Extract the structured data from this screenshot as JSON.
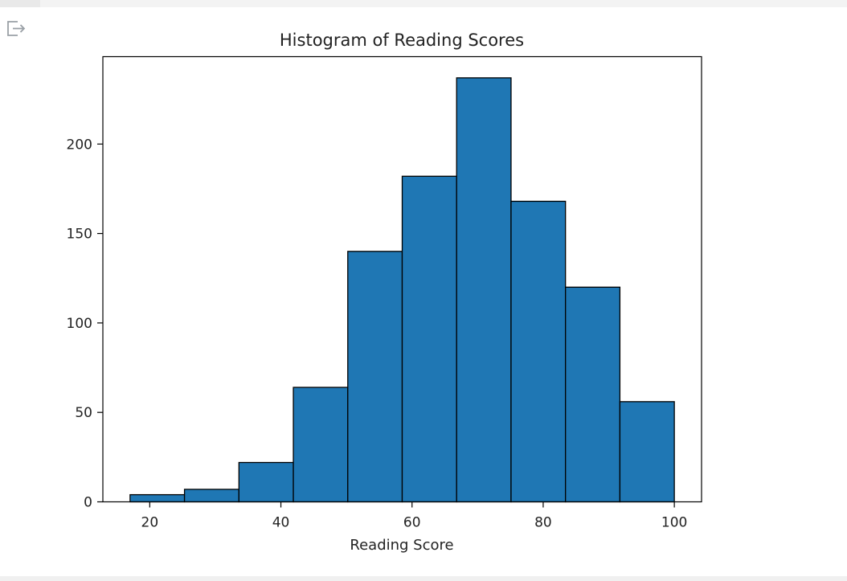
{
  "output": {
    "icon": "output-redirect-icon"
  },
  "colors": {
    "bar_fill": "#1f77b4",
    "bar_edge": "#000000",
    "text": "#222222",
    "icon": "#9aa0a6"
  },
  "chart_data": {
    "type": "bar",
    "histogram": true,
    "title": "Histogram of Reading Scores",
    "xlabel": "Reading Score",
    "ylabel": "",
    "bin_edges": [
      17,
      25.3,
      33.6,
      41.9,
      50.2,
      58.5,
      66.8,
      75.1,
      83.4,
      91.7,
      100
    ],
    "values": [
      4,
      7,
      22,
      64,
      140,
      182,
      237,
      168,
      120,
      56
    ],
    "xlim": [
      12.85,
      104.15
    ],
    "ylim": [
      0,
      248.85
    ],
    "xticks": [
      20,
      40,
      60,
      80,
      100
    ],
    "xtick_labels": [
      "20",
      "40",
      "60",
      "80",
      "100"
    ],
    "yticks": [
      0,
      50,
      100,
      150,
      200
    ],
    "ytick_labels": [
      "0",
      "50",
      "100",
      "150",
      "200"
    ],
    "grid": false,
    "legend": "none"
  }
}
